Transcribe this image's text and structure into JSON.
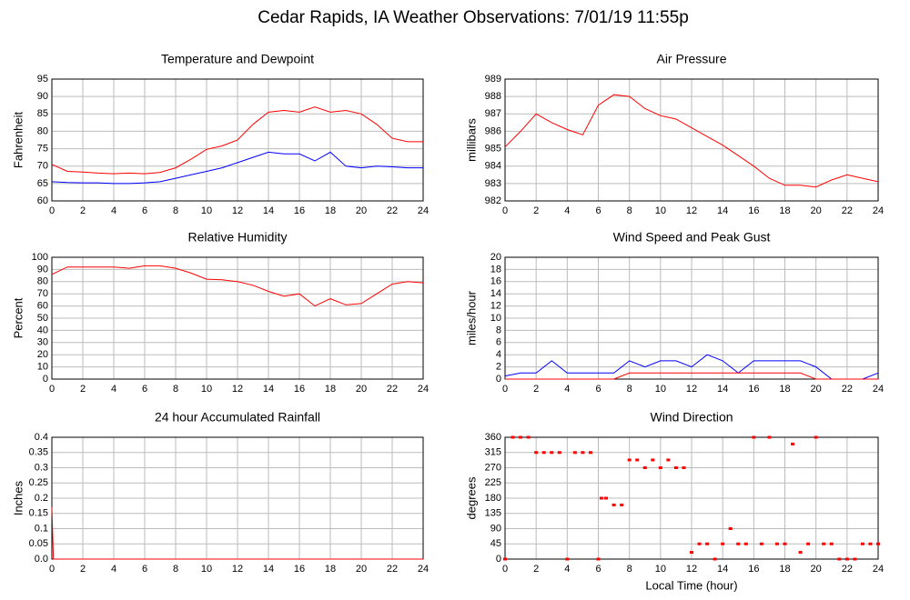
{
  "title": "Cedar Rapids, IA Weather Observations: 7/01/19 11:55p",
  "chart_data": [
    {
      "type": "line",
      "title": "Temperature and Dewpoint",
      "ylabel": "Fahrenheit",
      "x": [
        0,
        1,
        2,
        3,
        4,
        5,
        6,
        7,
        8,
        9,
        10,
        11,
        12,
        13,
        14,
        15,
        16,
        17,
        18,
        19,
        20,
        21,
        22,
        23,
        24
      ],
      "xlim": [
        0,
        24
      ],
      "xticks": [
        0,
        2,
        4,
        6,
        8,
        10,
        12,
        14,
        16,
        18,
        20,
        22,
        24
      ],
      "ylim": [
        60,
        95
      ],
      "yticks": [
        60,
        65,
        70,
        75,
        80,
        85,
        90,
        95
      ],
      "grid": true,
      "series": [
        {
          "color": "#ff0000",
          "values": [
            70.5,
            68.5,
            68.3,
            68,
            67.8,
            68,
            67.8,
            68.2,
            69.5,
            72,
            74.8,
            75.8,
            77.5,
            82,
            85.5,
            86,
            85.5,
            87,
            85.5,
            86,
            85,
            82,
            78,
            77,
            77
          ]
        },
        {
          "color": "#0000ff",
          "values": [
            65.5,
            65.3,
            65.2,
            65.2,
            65,
            65,
            65.2,
            65.5,
            66.5,
            67.5,
            68.5,
            69.5,
            71,
            72.5,
            74,
            73.5,
            73.5,
            71.5,
            74,
            70,
            69.5,
            70,
            69.8,
            69.5,
            69.5
          ]
        }
      ]
    },
    {
      "type": "line",
      "title": "Air Pressure",
      "ylabel": "millibars",
      "x": [
        0,
        1,
        2,
        3,
        4,
        5,
        6,
        7,
        8,
        9,
        10,
        11,
        12,
        13,
        14,
        15,
        16,
        17,
        18,
        19,
        20,
        21,
        22,
        23,
        24
      ],
      "xlim": [
        0,
        24
      ],
      "xticks": [
        0,
        2,
        4,
        6,
        8,
        10,
        12,
        14,
        16,
        18,
        20,
        22,
        24
      ],
      "ylim": [
        982,
        989
      ],
      "yticks": [
        982,
        983,
        984,
        985,
        986,
        987,
        988,
        989
      ],
      "grid": true,
      "series": [
        {
          "color": "#ff0000",
          "values": [
            985.1,
            986,
            987,
            986.5,
            986.1,
            985.8,
            987.5,
            988.1,
            988,
            987.3,
            986.9,
            986.7,
            986.2,
            985.7,
            985.2,
            984.6,
            984,
            983.3,
            982.9,
            982.9,
            982.8,
            983.2,
            983.5,
            983.3,
            983.1
          ]
        }
      ]
    },
    {
      "type": "line",
      "title": "Relative Humidity",
      "ylabel": "Percent",
      "x": [
        0,
        1,
        2,
        3,
        4,
        5,
        6,
        7,
        8,
        9,
        10,
        11,
        12,
        13,
        14,
        15,
        16,
        17,
        18,
        19,
        20,
        21,
        22,
        23,
        24
      ],
      "xlim": [
        0,
        24
      ],
      "xticks": [
        0,
        2,
        4,
        6,
        8,
        10,
        12,
        14,
        16,
        18,
        20,
        22,
        24
      ],
      "ylim": [
        0,
        100
      ],
      "yticks": [
        0,
        10,
        20,
        30,
        40,
        50,
        60,
        70,
        80,
        90,
        100
      ],
      "grid": true,
      "series": [
        {
          "color": "#ff0000",
          "values": [
            86,
            92,
            92,
            92,
            92,
            91,
            93,
            93,
            91,
            87,
            82,
            81.5,
            80,
            77,
            72,
            68,
            70,
            60,
            66,
            61,
            62,
            70,
            78,
            80,
            79
          ]
        }
      ]
    },
    {
      "type": "line",
      "title": "Wind Speed and Peak Gust",
      "ylabel": "miles/hour",
      "x": [
        0,
        1,
        2,
        3,
        4,
        5,
        6,
        7,
        8,
        9,
        10,
        11,
        12,
        13,
        14,
        15,
        16,
        17,
        18,
        19,
        20,
        21,
        22,
        23,
        24
      ],
      "xlim": [
        0,
        24
      ],
      "xticks": [
        0,
        2,
        4,
        6,
        8,
        10,
        12,
        14,
        16,
        18,
        20,
        22,
        24
      ],
      "ylim": [
        0,
        20
      ],
      "yticks": [
        0,
        2,
        4,
        6,
        8,
        10,
        12,
        14,
        16,
        18,
        20
      ],
      "grid": true,
      "series": [
        {
          "color": "#0000ff",
          "values": [
            0.5,
            1,
            1,
            3,
            1,
            1,
            1,
            1,
            3,
            2,
            3,
            3,
            2,
            4,
            3,
            1,
            3,
            3,
            3,
            3,
            2,
            0,
            0,
            0,
            1
          ]
        },
        {
          "color": "#ff0000",
          "values": [
            0,
            0,
            0,
            0,
            0,
            0,
            0,
            0,
            1,
            1,
            1,
            1,
            1,
            1,
            1,
            1,
            1,
            1,
            1,
            1,
            0,
            0,
            0,
            0,
            0
          ]
        }
      ]
    },
    {
      "type": "line",
      "title": "24 hour Accumulated Rainfall",
      "ylabel": "Inches",
      "x": [
        0,
        0.1,
        24
      ],
      "xlim": [
        0,
        24
      ],
      "xticks": [
        0,
        2,
        4,
        6,
        8,
        10,
        12,
        14,
        16,
        18,
        20,
        22,
        24
      ],
      "ylim": [
        0,
        0.4
      ],
      "yticks": [
        {
          "value": 0,
          "label": "0.0"
        },
        0.05,
        0.1,
        0.15,
        0.2,
        0.25,
        0.3,
        0.35,
        0.4
      ],
      "grid": true,
      "series": [
        {
          "color": "#ff0000",
          "values": [
            0.17,
            0,
            0
          ]
        }
      ]
    },
    {
      "type": "scatter",
      "title": "Wind Direction",
      "ylabel": "degrees",
      "xlabel": "Local Time (hour)",
      "x": [
        0,
        0.5,
        1,
        1.5,
        2,
        2.5,
        3,
        3.5,
        4,
        4.5,
        5,
        5.5,
        6,
        6.2,
        6.5,
        7,
        7.5,
        8,
        8.5,
        9,
        9.5,
        10,
        10.5,
        11,
        11.5,
        12,
        12.5,
        13,
        13.5,
        14,
        14.5,
        15,
        15.5,
        16,
        16.5,
        17,
        17.5,
        18,
        18.5,
        19,
        19.5,
        20,
        20.5,
        21,
        21.5,
        22,
        22.5,
        23,
        23.5,
        24
      ],
      "xlim": [
        0,
        24
      ],
      "xticks": [
        0,
        2,
        4,
        6,
        8,
        10,
        12,
        14,
        16,
        18,
        20,
        22,
        24
      ],
      "ylim": [
        0,
        360
      ],
      "yticks": [
        0,
        45,
        90,
        135,
        180,
        225,
        270,
        315,
        360
      ],
      "grid": true,
      "series": [
        {
          "color": "#ff0000",
          "values": [
            0,
            360,
            360,
            360,
            315,
            315,
            315,
            315,
            0,
            315,
            315,
            315,
            0,
            180,
            180,
            160,
            160,
            293,
            293,
            270,
            293,
            270,
            293,
            270,
            270,
            20,
            45,
            45,
            0,
            45,
            90,
            45,
            45,
            360,
            45,
            360,
            45,
            45,
            340,
            20,
            45,
            360,
            45,
            45,
            0,
            0,
            0,
            45,
            45,
            45
          ]
        }
      ]
    }
  ]
}
